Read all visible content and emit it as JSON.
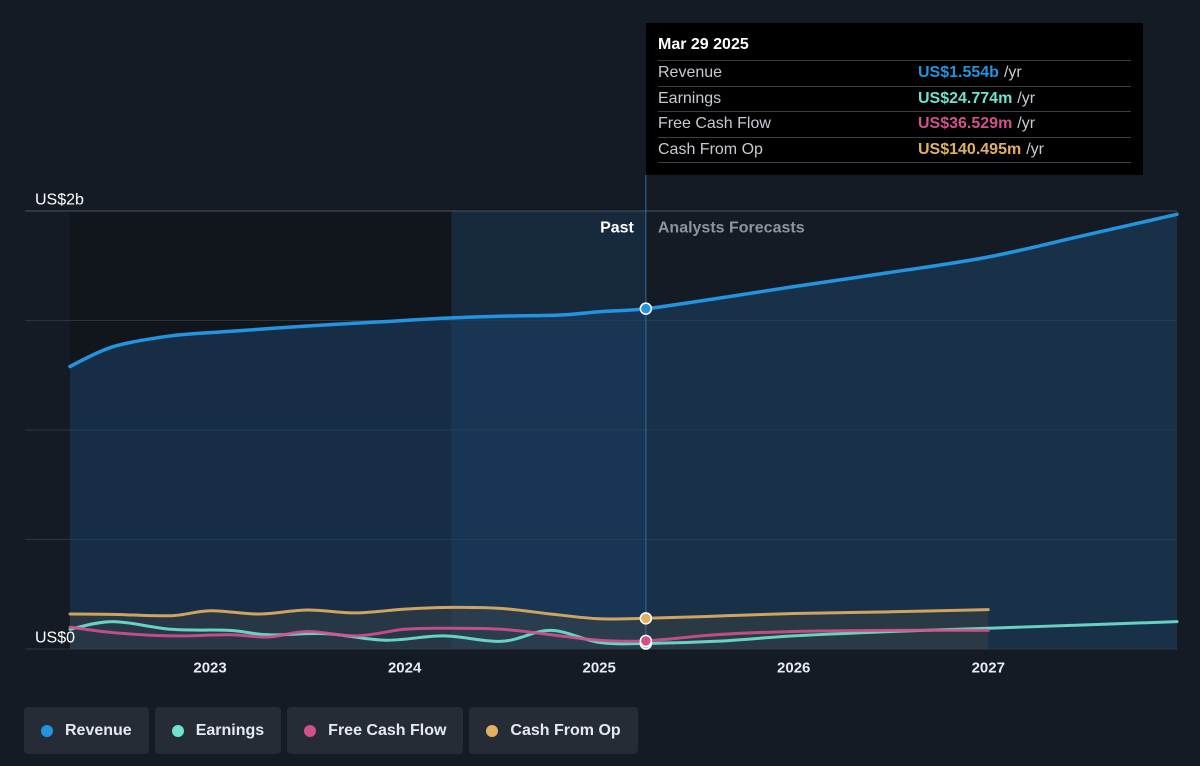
{
  "colors": {
    "revenue": "#2394df",
    "earnings": "#6fe3d0",
    "fcf": "#d2518a",
    "cfo": "#e3b062"
  },
  "labels": {
    "past": "Past",
    "forecast": "Analysts Forecasts"
  },
  "tooltip": {
    "date": "Mar 29 2025",
    "rows": [
      {
        "label": "Revenue",
        "value": "US$1.554b",
        "unit": "/yr",
        "color": "#2394df"
      },
      {
        "label": "Earnings",
        "value": "US$24.774m",
        "unit": "/yr",
        "color": "#6fe3d0"
      },
      {
        "label": "Free Cash Flow",
        "value": "US$36.529m",
        "unit": "/yr",
        "color": "#d2518a"
      },
      {
        "label": "Cash From Op",
        "value": "US$140.495m",
        "unit": "/yr",
        "color": "#e3b062"
      }
    ]
  },
  "legend": [
    {
      "label": "Revenue",
      "color": "#2394df"
    },
    {
      "label": "Earnings",
      "color": "#6fe3d0"
    },
    {
      "label": "Free Cash Flow",
      "color": "#d2518a"
    },
    {
      "label": "Cash From Op",
      "color": "#e3b062"
    }
  ],
  "chart_data": {
    "type": "line",
    "ylim": [
      0,
      2000
    ],
    "y_unit": "US$ millions",
    "y_tick_labels": [
      {
        "value": 2000,
        "label": "US$2b"
      },
      {
        "value": 0,
        "label": "US$0"
      }
    ],
    "x_ticks": [
      2023,
      2024,
      2025,
      2026,
      2027
    ],
    "xlim": [
      2022.28,
      2027.97
    ],
    "past_end": 2025.24,
    "highlight_start": 2024.24,
    "grid": true,
    "legend_position": "bottom",
    "series": [
      {
        "name": "Revenue",
        "key": "revenue",
        "x": [
          2022.28,
          2022.5,
          2022.8,
          2023.1,
          2023.5,
          2023.9,
          2024.2,
          2024.5,
          2024.8,
          2025.0,
          2025.24,
          2025.6,
          2026.0,
          2026.5,
          2027.0,
          2027.5,
          2027.97
        ],
        "y": [
          1290,
          1380,
          1430,
          1450,
          1475,
          1495,
          1510,
          1520,
          1525,
          1540,
          1554,
          1600,
          1655,
          1720,
          1790,
          1890,
          1985
        ]
      },
      {
        "name": "Earnings",
        "key": "earnings",
        "x": [
          2022.28,
          2022.5,
          2022.8,
          2023.1,
          2023.3,
          2023.6,
          2023.9,
          2024.2,
          2024.5,
          2024.75,
          2025.0,
          2025.24,
          2025.6,
          2026.0,
          2026.5,
          2027.0,
          2027.5,
          2027.97
        ],
        "y": [
          90,
          125,
          90,
          85,
          65,
          70,
          40,
          60,
          35,
          85,
          30,
          25,
          35,
          60,
          80,
          95,
          110,
          125
        ]
      },
      {
        "name": "Free Cash Flow",
        "key": "fcf",
        "x": [
          2022.28,
          2022.5,
          2022.8,
          2023.1,
          2023.3,
          2023.5,
          2023.75,
          2024.0,
          2024.2,
          2024.5,
          2024.8,
          2025.0,
          2025.24,
          2025.6,
          2026.0,
          2026.5,
          2027.0
        ],
        "y": [
          100,
          75,
          60,
          65,
          55,
          80,
          60,
          90,
          95,
          90,
          60,
          40,
          37,
          65,
          80,
          85,
          85
        ]
      },
      {
        "name": "Cash From Op",
        "key": "cfo",
        "x": [
          2022.28,
          2022.5,
          2022.8,
          2023.0,
          2023.25,
          2023.5,
          2023.75,
          2024.0,
          2024.25,
          2024.5,
          2024.75,
          2025.0,
          2025.24,
          2025.6,
          2026.0,
          2026.5,
          2027.0
        ],
        "y": [
          160,
          158,
          152,
          175,
          160,
          178,
          165,
          182,
          190,
          185,
          160,
          138,
          140,
          150,
          162,
          170,
          180
        ]
      }
    ]
  }
}
